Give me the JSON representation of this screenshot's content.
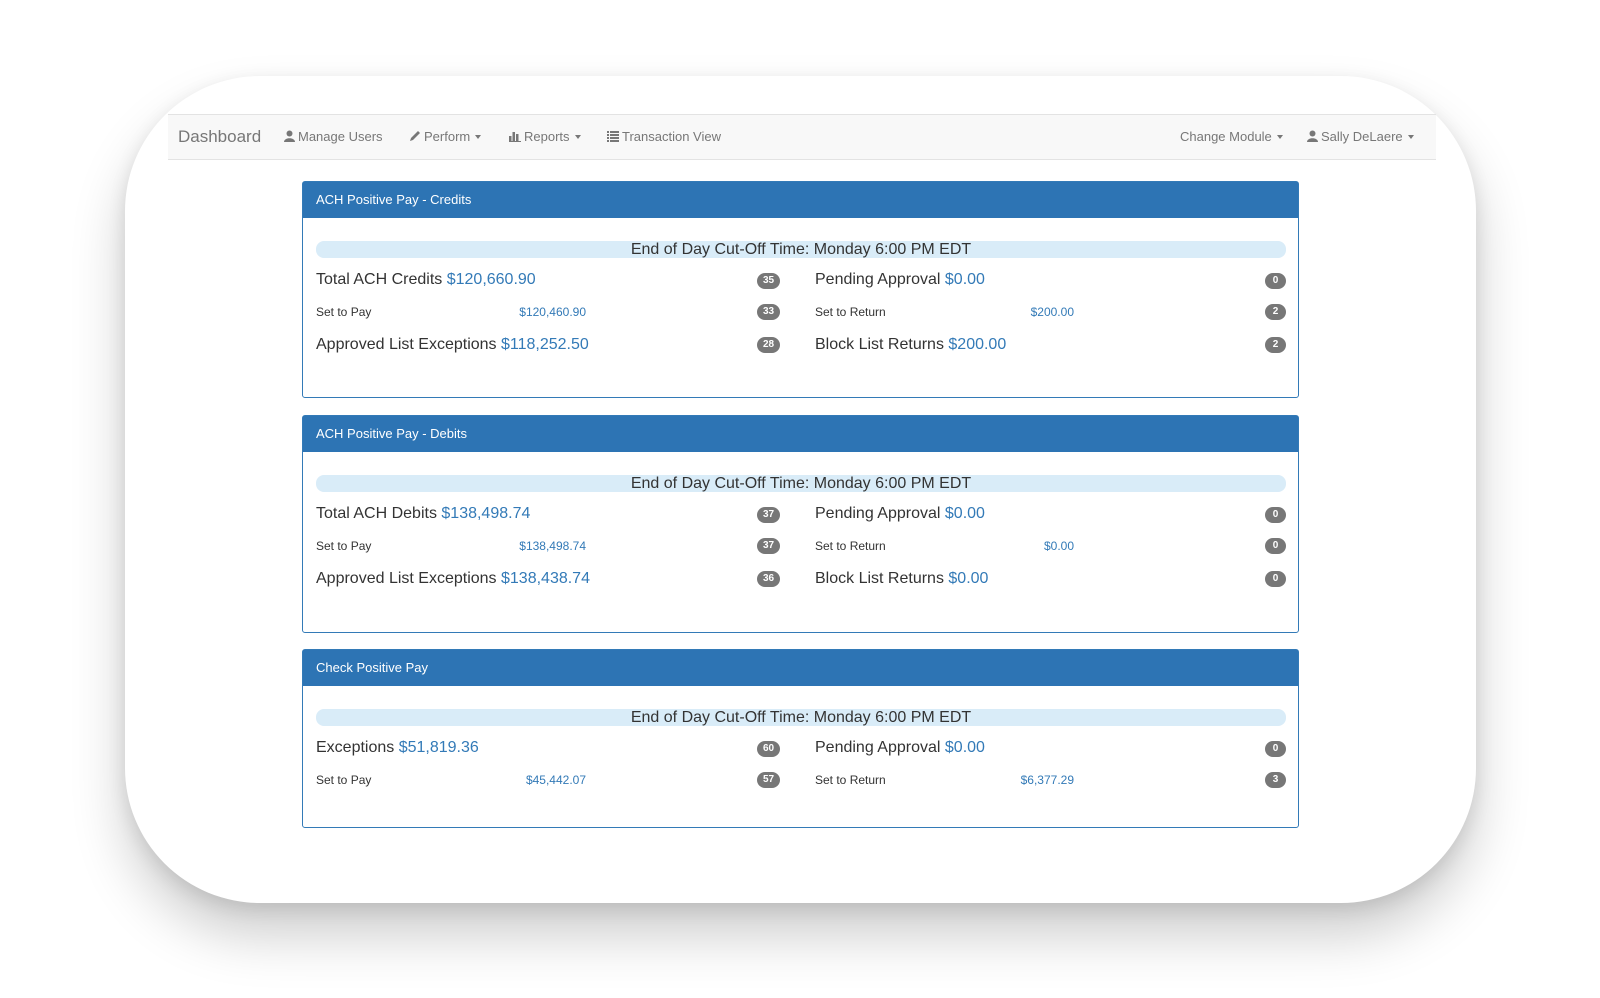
{
  "navbar": {
    "brand": "Dashboard",
    "items": [
      {
        "label": "Manage Users",
        "icon": "user-icon"
      },
      {
        "label": "Perform",
        "icon": "pencil-icon"
      },
      {
        "label": "Reports",
        "icon": "bar-chart-icon"
      },
      {
        "label": "Transaction View",
        "icon": "list-icon"
      }
    ],
    "change_module": "Change Module",
    "user": "Sally DeLaere"
  },
  "colors": {
    "panel_header": "#2d74b4",
    "cutoff_bar": "#d9ecf8",
    "money": "#337ab7",
    "badge": "#777777"
  },
  "panels": [
    {
      "title": "ACH Positive Pay - Credits",
      "cutoff": "End of Day Cut-Off Time: Monday 6:00 PM EDT",
      "left": [
        {
          "label": "Total ACH Credits",
          "amount": "$120,660.90",
          "count": "35"
        },
        {
          "label": "Set to Pay",
          "amount": "$120,460.90",
          "count": "33"
        },
        {
          "label": "Approved List Exceptions",
          "amount": "$118,252.50",
          "count": "28"
        }
      ],
      "right": [
        {
          "label": "Pending Approval",
          "amount": "$0.00",
          "count": "0"
        },
        {
          "label": "Set to Return",
          "amount": "$200.00",
          "count": "2"
        },
        {
          "label": "Block List Returns",
          "amount": "$200.00",
          "count": "2"
        }
      ]
    },
    {
      "title": "ACH Positive Pay - Debits",
      "cutoff": "End of Day Cut-Off Time: Monday 6:00 PM EDT",
      "left": [
        {
          "label": "Total ACH Debits",
          "amount": "$138,498.74",
          "count": "37"
        },
        {
          "label": "Set to Pay",
          "amount": "$138,498.74",
          "count": "37"
        },
        {
          "label": "Approved List Exceptions",
          "amount": "$138,438.74",
          "count": "36"
        }
      ],
      "right": [
        {
          "label": "Pending Approval",
          "amount": "$0.00",
          "count": "0"
        },
        {
          "label": "Set to Return",
          "amount": "$0.00",
          "count": "0"
        },
        {
          "label": "Block List Returns",
          "amount": "$0.00",
          "count": "0"
        }
      ]
    },
    {
      "title": "Check Positive Pay",
      "cutoff": "End of Day Cut-Off Time: Monday 6:00 PM EDT",
      "left": [
        {
          "label": "Exceptions",
          "amount": "$51,819.36",
          "count": "60"
        },
        {
          "label": "Set to Pay",
          "amount": "$45,442.07",
          "count": "57"
        }
      ],
      "right": [
        {
          "label": "Pending Approval",
          "amount": "$0.00",
          "count": "0"
        },
        {
          "label": "Set to Return",
          "amount": "$6,377.29",
          "count": "3"
        }
      ]
    }
  ]
}
